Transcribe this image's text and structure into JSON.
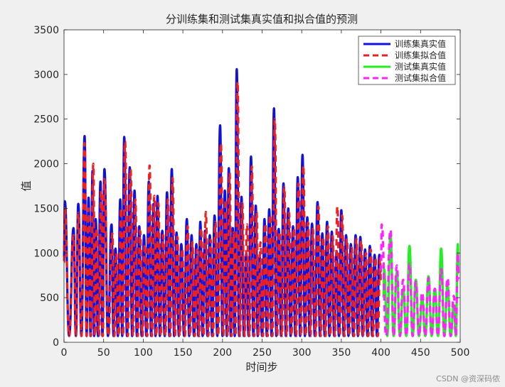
{
  "watermark": "CSDN @资深码侬",
  "chart_data": {
    "type": "line",
    "title": "分训练集和测试集真实值和拟合值的预测",
    "xlabel": "时间步",
    "ylabel": "值",
    "xlim": [
      0,
      500
    ],
    "ylim": [
      0,
      3500
    ],
    "xticks": [
      "0",
      "50",
      "100",
      "150",
      "200",
      "250",
      "300",
      "350",
      "400",
      "450",
      "500"
    ],
    "yticks": [
      "0",
      "500",
      "1000",
      "1500",
      "2000",
      "2500",
      "3000",
      "3500"
    ],
    "grid": false,
    "legend_position": "top-right",
    "colors": {
      "train_true": "#1010e0",
      "train_fit": "#ee2020",
      "test_true": "#22ee22",
      "test_fit": "#ff22ff"
    },
    "series": [
      {
        "name": "训练集真实值",
        "color": "#1010e0",
        "style": "solid",
        "peaks": [
          [
            1,
            1580
          ],
          [
            12,
            1280
          ],
          [
            18,
            1550
          ],
          [
            26,
            2310
          ],
          [
            31,
            1620
          ],
          [
            36,
            1920
          ],
          [
            40,
            1380
          ],
          [
            46,
            1800
          ],
          [
            51,
            1940
          ],
          [
            60,
            1320
          ],
          [
            65,
            1050
          ],
          [
            71,
            1600
          ],
          [
            76,
            2300
          ],
          [
            83,
            1960
          ],
          [
            89,
            1700
          ],
          [
            95,
            1300
          ],
          [
            101,
            1200
          ],
          [
            107,
            1800
          ],
          [
            113,
            1550
          ],
          [
            118,
            1640
          ],
          [
            124,
            1250
          ],
          [
            130,
            1680
          ],
          [
            136,
            1940
          ],
          [
            142,
            1230
          ],
          [
            148,
            1100
          ],
          [
            155,
            1380
          ],
          [
            161,
            1200
          ],
          [
            167,
            1100
          ],
          [
            172,
            1350
          ],
          [
            178,
            1250
          ],
          [
            184,
            1200
          ],
          [
            190,
            1420
          ],
          [
            197,
            2430
          ],
          [
            203,
            1700
          ],
          [
            208,
            1950
          ],
          [
            213,
            1280
          ],
          [
            218,
            3060
          ],
          [
            224,
            1630
          ],
          [
            230,
            1000
          ],
          [
            236,
            2080
          ],
          [
            242,
            1530
          ],
          [
            247,
            950
          ],
          [
            253,
            1380
          ],
          [
            259,
            1490
          ],
          [
            265,
            2620
          ],
          [
            271,
            1270
          ],
          [
            277,
            1780
          ],
          [
            283,
            1500
          ],
          [
            289,
            1300
          ],
          [
            295,
            1850
          ],
          [
            301,
            2100
          ],
          [
            307,
            1400
          ],
          [
            313,
            1330
          ],
          [
            320,
            1570
          ],
          [
            326,
            1220
          ],
          [
            332,
            1350
          ],
          [
            338,
            1240
          ],
          [
            344,
            1020
          ],
          [
            350,
            1480
          ],
          [
            356,
            1200
          ],
          [
            362,
            1100
          ],
          [
            368,
            1200
          ],
          [
            374,
            1180
          ],
          [
            380,
            1040
          ],
          [
            386,
            1080
          ],
          [
            392,
            980
          ],
          [
            398,
            980
          ]
        ]
      },
      {
        "name": "训练集拟合值",
        "color": "#ee2020",
        "style": "dashed",
        "peaks": [
          [
            1,
            1500
          ],
          [
            12,
            1200
          ],
          [
            18,
            1450
          ],
          [
            26,
            2230
          ],
          [
            31,
            1500
          ],
          [
            37,
            2000
          ],
          [
            41,
            1280
          ],
          [
            47,
            1700
          ],
          [
            51,
            1830
          ],
          [
            61,
            1220
          ],
          [
            66,
            1000
          ],
          [
            72,
            1500
          ],
          [
            77,
            2250
          ],
          [
            84,
            1940
          ],
          [
            90,
            1600
          ],
          [
            96,
            1250
          ],
          [
            102,
            1100
          ],
          [
            108,
            1980
          ],
          [
            114,
            1640
          ],
          [
            119,
            1560
          ],
          [
            125,
            1200
          ],
          [
            131,
            1600
          ],
          [
            137,
            1840
          ],
          [
            143,
            1180
          ],
          [
            149,
            1050
          ],
          [
            156,
            1300
          ],
          [
            162,
            1120
          ],
          [
            168,
            1040
          ],
          [
            173,
            1280
          ],
          [
            179,
            1460
          ],
          [
            185,
            1150
          ],
          [
            191,
            1350
          ],
          [
            198,
            2230
          ],
          [
            204,
            1600
          ],
          [
            209,
            1900
          ],
          [
            214,
            1230
          ],
          [
            219,
            2920
          ],
          [
            225,
            1560
          ],
          [
            231,
            1320
          ],
          [
            237,
            1970
          ],
          [
            243,
            1460
          ],
          [
            248,
            1120
          ],
          [
            254,
            1330
          ],
          [
            260,
            1430
          ],
          [
            266,
            2500
          ],
          [
            272,
            1240
          ],
          [
            278,
            1740
          ],
          [
            284,
            1450
          ],
          [
            290,
            1280
          ],
          [
            296,
            1780
          ],
          [
            302,
            1980
          ],
          [
            308,
            1340
          ],
          [
            314,
            1270
          ],
          [
            321,
            1520
          ],
          [
            327,
            1180
          ],
          [
            333,
            1300
          ],
          [
            339,
            1190
          ],
          [
            345,
            1520
          ],
          [
            351,
            1420
          ],
          [
            357,
            1160
          ],
          [
            363,
            1060
          ],
          [
            369,
            1160
          ],
          [
            375,
            1140
          ],
          [
            381,
            1000
          ],
          [
            387,
            1040
          ],
          [
            393,
            950
          ],
          [
            399,
            940
          ]
        ]
      },
      {
        "name": "测试集真实值",
        "color": "#22ee22",
        "style": "solid",
        "peaks": [
          [
            404,
            820
          ],
          [
            412,
            1200
          ],
          [
            420,
            790
          ],
          [
            428,
            600
          ],
          [
            436,
            1080
          ],
          [
            444,
            700
          ],
          [
            452,
            500
          ],
          [
            460,
            740
          ],
          [
            468,
            600
          ],
          [
            476,
            1050
          ],
          [
            484,
            640
          ],
          [
            492,
            420
          ],
          [
            497,
            1100
          ]
        ]
      },
      {
        "name": "测试集拟合值",
        "color": "#ff22ff",
        "style": "dashed",
        "peaks": [
          [
            401,
            1320
          ],
          [
            412,
            1260
          ],
          [
            420,
            860
          ],
          [
            428,
            700
          ],
          [
            436,
            880
          ],
          [
            444,
            680
          ],
          [
            452,
            560
          ],
          [
            460,
            720
          ],
          [
            468,
            600
          ],
          [
            476,
            820
          ],
          [
            484,
            720
          ],
          [
            492,
            520
          ],
          [
            497,
            1000
          ]
        ]
      }
    ]
  }
}
